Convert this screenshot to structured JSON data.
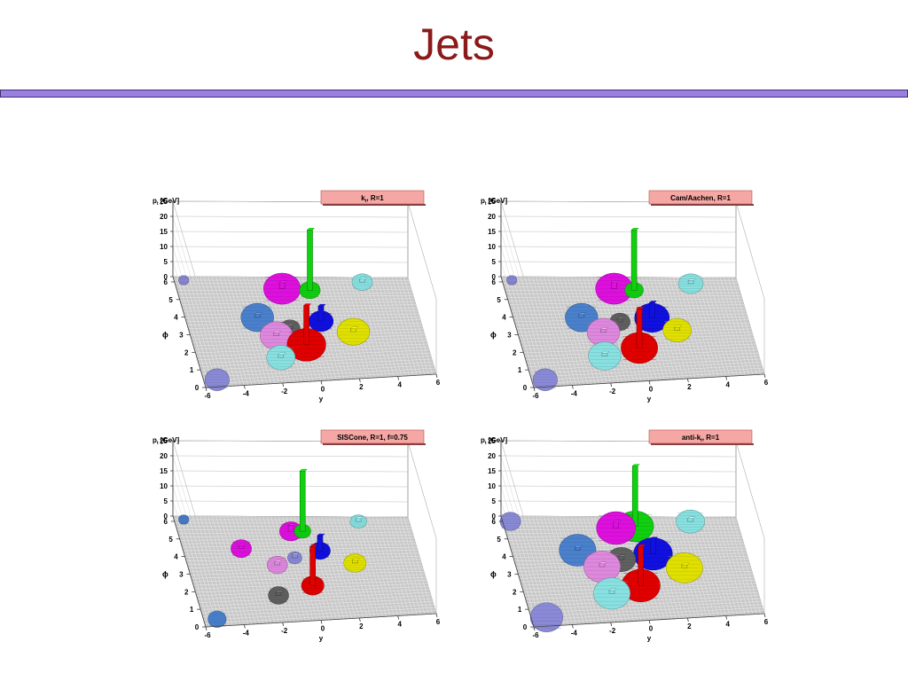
{
  "slide": {
    "title": "Jets",
    "title_color": "#8b1a1a",
    "rule_color": "#9b7fe0"
  },
  "chart_data": [
    {
      "type": "lego-3d",
      "title": "k",
      "title_sub": "t",
      "title_suffix": ", R=1",
      "title_box_color": "#f4a7a3",
      "ylabel": "p",
      "ylabel_sub": "t",
      "ylabel_suffix": " [GeV]",
      "xlabel": "y",
      "zlabel": "ϕ",
      "x_ticks": [
        "-6",
        "-4",
        "-2",
        "0",
        "2",
        "4",
        "6"
      ],
      "z_ticks": [
        "0",
        "1",
        "2",
        "3",
        "4",
        "5",
        "6"
      ],
      "y_ticks": [
        "0",
        "5",
        "10",
        "15",
        "20",
        "25"
      ],
      "x_range": [
        -6,
        6
      ],
      "z_range": [
        0,
        6.3
      ],
      "y_range": [
        0,
        25
      ],
      "jets": [
        {
          "color": "#8a8ad8",
          "y": -5.3,
          "phi": 0.4,
          "r": 0.6,
          "h": 0
        },
        {
          "color": "#8a8ad8",
          "y": -5.5,
          "phi": 6.1,
          "r": 0.25,
          "h": 0
        },
        {
          "color": "#4a80cc",
          "y": -2.3,
          "phi": 3.9,
          "r": 0.8,
          "h": 1
        },
        {
          "color": "#dd88dd",
          "y": -1.6,
          "phi": 2.8,
          "r": 0.8,
          "h": 1
        },
        {
          "color": "#88e0e0",
          "y": -1.7,
          "phi": 1.5,
          "r": 0.7,
          "h": 1
        },
        {
          "color": "#dd10dd",
          "y": -0.6,
          "phi": 5.6,
          "r": 0.9,
          "h": 2
        },
        {
          "color": "#606060",
          "y": -0.8,
          "phi": 3.2,
          "r": 0.5,
          "h": 1
        },
        {
          "color": "#e00000",
          "y": -0.2,
          "phi": 2.2,
          "r": 0.95,
          "h": 13
        },
        {
          "color": "#1010e0",
          "y": 0.9,
          "phi": 3.6,
          "r": 0.6,
          "h": 5
        },
        {
          "color": "#10d010",
          "y": 0.8,
          "phi": 5.5,
          "r": 0.5,
          "h": 20
        },
        {
          "color": "#e0e000",
          "y": 2.4,
          "phi": 2.9,
          "r": 0.8,
          "h": 1
        },
        {
          "color": "#88e0e0",
          "y": 3.6,
          "phi": 6.0,
          "r": 0.5,
          "h": 1
        }
      ]
    },
    {
      "type": "lego-3d",
      "title": "Cam/Aachen",
      "title_sub": "",
      "title_suffix": ", R=1",
      "title_box_color": "#f4a7a3",
      "ylabel": "p",
      "ylabel_sub": "t",
      "ylabel_suffix": " [GeV]",
      "xlabel": "y",
      "zlabel": "ϕ",
      "x_ticks": [
        "-6",
        "-4",
        "-2",
        "0",
        "2",
        "4",
        "6"
      ],
      "z_ticks": [
        "0",
        "1",
        "2",
        "3",
        "4",
        "5",
        "6"
      ],
      "y_ticks": [
        "0",
        "5",
        "10",
        "15",
        "20",
        "25"
      ],
      "x_range": [
        -6,
        6
      ],
      "z_range": [
        0,
        6.3
      ],
      "y_range": [
        0,
        25
      ],
      "jets": [
        {
          "color": "#8a8ad8",
          "y": -5.3,
          "phi": 0.4,
          "r": 0.6,
          "h": 0
        },
        {
          "color": "#8a8ad8",
          "y": -5.5,
          "phi": 6.1,
          "r": 0.25,
          "h": 0
        },
        {
          "color": "#4a80cc",
          "y": -2.5,
          "phi": 3.9,
          "r": 0.8,
          "h": 1
        },
        {
          "color": "#dd88dd",
          "y": -1.6,
          "phi": 3.0,
          "r": 0.8,
          "h": 1
        },
        {
          "color": "#88e0e0",
          "y": -1.9,
          "phi": 1.6,
          "r": 0.8,
          "h": 1
        },
        {
          "color": "#dd10dd",
          "y": -0.4,
          "phi": 5.6,
          "r": 0.9,
          "h": 2
        },
        {
          "color": "#606060",
          "y": -0.6,
          "phi": 3.6,
          "r": 0.5,
          "h": 1
        },
        {
          "color": "#e00000",
          "y": 0.0,
          "phi": 2.0,
          "r": 0.9,
          "h": 13
        },
        {
          "color": "#1010e0",
          "y": 1.1,
          "phi": 3.8,
          "r": 0.85,
          "h": 5
        },
        {
          "color": "#10d010",
          "y": 0.6,
          "phi": 5.5,
          "r": 0.45,
          "h": 20
        },
        {
          "color": "#e0e000",
          "y": 2.2,
          "phi": 3.0,
          "r": 0.7,
          "h": 1
        },
        {
          "color": "#88e0e0",
          "y": 3.6,
          "phi": 5.9,
          "r": 0.6,
          "h": 1
        }
      ]
    },
    {
      "type": "lego-3d",
      "title": "SISCone",
      "title_sub": "",
      "title_suffix": ", R=1, f=0.75",
      "title_box_color": "#f4a7a3",
      "ylabel": "p",
      "ylabel_sub": "t",
      "ylabel_suffix": " [GeV]",
      "xlabel": "y",
      "zlabel": "ϕ",
      "x_ticks": [
        "-6",
        "-4",
        "-2",
        "0",
        "2",
        "4",
        "6"
      ],
      "z_ticks": [
        "0",
        "1",
        "2",
        "3",
        "4",
        "5",
        "6"
      ],
      "y_ticks": [
        "0",
        "5",
        "10",
        "15",
        "20",
        "25"
      ],
      "x_range": [
        -6,
        6
      ],
      "z_range": [
        0,
        6.3
      ],
      "y_range": [
        0,
        25
      ],
      "jets": [
        {
          "color": "#4a80cc",
          "y": -5.3,
          "phi": 0.4,
          "r": 0.45,
          "h": 0
        },
        {
          "color": "#4a80cc",
          "y": -5.5,
          "phi": 6.1,
          "r": 0.25,
          "h": 0
        },
        {
          "color": "#dd10dd",
          "y": -3.0,
          "phi": 4.4,
          "r": 0.5,
          "h": 1
        },
        {
          "color": "#dd88dd",
          "y": -1.4,
          "phi": 3.4,
          "r": 0.5,
          "h": 1
        },
        {
          "color": "#606060",
          "y": -1.8,
          "phi": 1.6,
          "r": 0.5,
          "h": 1
        },
        {
          "color": "#dd10dd",
          "y": -0.2,
          "phi": 5.4,
          "r": 0.55,
          "h": 2
        },
        {
          "color": "#8a8ad8",
          "y": -0.4,
          "phi": 3.8,
          "r": 0.35,
          "h": 1
        },
        {
          "color": "#e00000",
          "y": 0.1,
          "phi": 2.1,
          "r": 0.55,
          "h": 13
        },
        {
          "color": "#1010e0",
          "y": 1.0,
          "phi": 4.2,
          "r": 0.5,
          "h": 5
        },
        {
          "color": "#10d010",
          "y": 0.4,
          "phi": 5.4,
          "r": 0.4,
          "h": 20
        },
        {
          "color": "#e0e000",
          "y": 2.6,
          "phi": 3.4,
          "r": 0.55,
          "h": 1
        },
        {
          "color": "#88e0e0",
          "y": 3.4,
          "phi": 6.0,
          "r": 0.4,
          "h": 1
        }
      ]
    },
    {
      "type": "lego-3d",
      "title": "anti-k",
      "title_sub": "t",
      "title_suffix": ", R=1",
      "title_box_color": "#f4a7a3",
      "ylabel": "p",
      "ylabel_sub": "t",
      "ylabel_suffix": " [GeV]",
      "xlabel": "y",
      "zlabel": "ϕ",
      "x_ticks": [
        "-6",
        "-4",
        "-2",
        "0",
        "2",
        "4",
        "6"
      ],
      "z_ticks": [
        "0",
        "1",
        "2",
        "3",
        "4",
        "5",
        "6"
      ],
      "y_ticks": [
        "0",
        "5",
        "10",
        "15",
        "20",
        "25"
      ],
      "x_range": [
        -6,
        6
      ],
      "z_range": [
        0,
        6.3
      ],
      "y_range": [
        0,
        25
      ],
      "jets": [
        {
          "color": "#8a8ad8",
          "y": -5.2,
          "phi": 0.5,
          "r": 0.8,
          "h": 0
        },
        {
          "color": "#8a8ad8",
          "y": -5.6,
          "phi": 6.0,
          "r": 0.5,
          "h": 0
        },
        {
          "color": "#4a80cc",
          "y": -2.6,
          "phi": 4.3,
          "r": 0.9,
          "h": 1
        },
        {
          "color": "#dd88dd",
          "y": -1.6,
          "phi": 3.3,
          "r": 0.9,
          "h": 1
        },
        {
          "color": "#88e0e0",
          "y": -1.5,
          "phi": 1.7,
          "r": 0.9,
          "h": 1
        },
        {
          "color": "#dd10dd",
          "y": -0.3,
          "phi": 5.6,
          "r": 0.95,
          "h": 2
        },
        {
          "color": "#606060",
          "y": -0.5,
          "phi": 3.7,
          "r": 0.7,
          "h": 1
        },
        {
          "color": "#e00000",
          "y": 0.1,
          "phi": 2.1,
          "r": 0.95,
          "h": 13
        },
        {
          "color": "#1010e0",
          "y": 1.2,
          "phi": 4.0,
          "r": 0.95,
          "h": 5
        },
        {
          "color": "#10d010",
          "y": 0.7,
          "phi": 5.7,
          "r": 0.9,
          "h": 20
        },
        {
          "color": "#e0e000",
          "y": 2.6,
          "phi": 3.1,
          "r": 0.9,
          "h": 1
        },
        {
          "color": "#88e0e0",
          "y": 3.6,
          "phi": 6.0,
          "r": 0.7,
          "h": 1
        }
      ]
    }
  ]
}
